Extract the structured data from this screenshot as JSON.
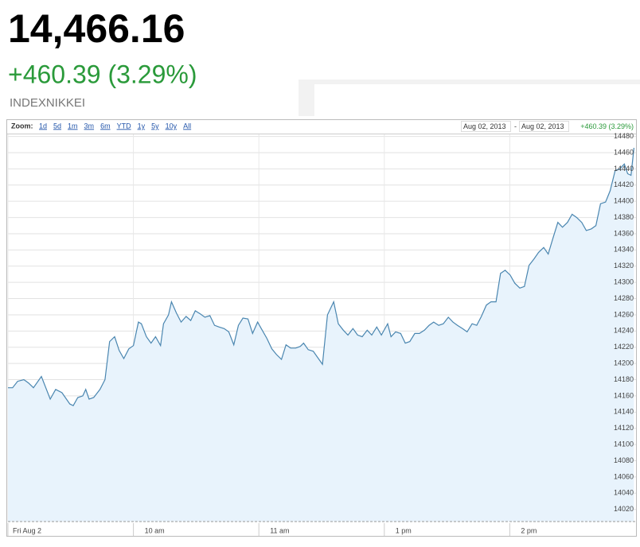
{
  "header": {
    "price": "14,466.16",
    "change": "+460.39 (3.29%)",
    "symbol": "INDEXNIKKEI"
  },
  "toolbar": {
    "zoom_label": "Zoom:",
    "zoom_options": [
      "1d",
      "5d",
      "1m",
      "3m",
      "6m",
      "YTD",
      "1y",
      "5y",
      "10y",
      "All"
    ],
    "range_start": "Aug 02, 2013",
    "range_separator": "-",
    "range_end": "Aug 02, 2013"
  },
  "chart_data": {
    "type": "line",
    "color": "#4a86b0",
    "fill": "#e8f3fc",
    "grid": true,
    "x": [
      0,
      1.1,
      2.3,
      3.8,
      4.9,
      6.1,
      8,
      10.1,
      11.4,
      12.9,
      14.8,
      15.6,
      16.7,
      17.9,
      18.6,
      19.4,
      20.5,
      22,
      23.2,
      24.3,
      25.5,
      26.6,
      27.7,
      28.9,
      30,
      31.2,
      31.9,
      33.1,
      34.2,
      35.3,
      36.5,
      37.2,
      38.4,
      39.1,
      40.3,
      41.4,
      42.6,
      43.7,
      44.8,
      46,
      47.1,
      48.3,
      49.4,
      50.5,
      51.7,
      52.8,
      54,
      55.1,
      56.2,
      57.4,
      58.5,
      59.7,
      60.8,
      61.9,
      63.1,
      64.2,
      65.4,
      66.5,
      67.6,
      68.8,
      69.9,
      70.7,
      71.8,
      73,
      74.1,
      75.2,
      76.4,
      77.9,
      79,
      80.2,
      81.3,
      82.5,
      83.6,
      84.7,
      85.9,
      87,
      88.2,
      89.3,
      90.8,
      91.6,
      92.7,
      93.9,
      95,
      96.1,
      97.3,
      98.4,
      99.6,
      100.7,
      101.8,
      103,
      104.1,
      105.3,
      106.4,
      107.5,
      108.7,
      109.8,
      111,
      112.1,
      113.2,
      114.4,
      115.5,
      116.7,
      117.8,
      118.9,
      120.1,
      121.2,
      122.4,
      123.5,
      124.6,
      125.8,
      126.9,
      128.1,
      129.2,
      130.3,
      131.5,
      132.6,
      133.8,
      134.9,
      136,
      137.2,
      138.3,
      139.5,
      140.6,
      141.7,
      142.9,
      144,
      145.2,
      146.3,
      147.4,
      148.2,
      149,
      149.7
    ],
    "values": [
      14170,
      14170,
      14178,
      14180,
      14176,
      14170,
      14184,
      14156,
      14168,
      14164,
      14150,
      14148,
      14158,
      14160,
      14168,
      14156,
      14158,
      14168,
      14180,
      14227,
      14233,
      14216,
      14206,
      14218,
      14222,
      14251,
      14249,
      14233,
      14225,
      14233,
      14222,
      14249,
      14260,
      14276,
      14262,
      14251,
      14258,
      14253,
      14265,
      14261,
      14257,
      14259,
      14247,
      14245,
      14243,
      14239,
      14223,
      14247,
      14256,
      14255,
      14237,
      14251,
      14241,
      14231,
      14218,
      14211,
      14205,
      14223,
      14219,
      14219,
      14221,
      14225,
      14217,
      14215,
      14207,
      14199,
      14260,
      14276,
      14249,
      14241,
      14235,
      14243,
      14235,
      14233,
      14241,
      14235,
      14245,
      14235,
      14249,
      14233,
      14239,
      14237,
      14225,
      14227,
      14237,
      14237,
      14241,
      14247,
      14251,
      14247,
      14249,
      14257,
      14251,
      14247,
      14243,
      14239,
      14249,
      14247,
      14258,
      14272,
      14276,
      14276,
      14311,
      14315,
      14309,
      14299,
      14293,
      14295,
      14321,
      14329,
      14337,
      14343,
      14335,
      14354,
      14374,
      14368,
      14374,
      14384,
      14380,
      14374,
      14364,
      14366,
      14370,
      14397,
      14399,
      14413,
      14438,
      14440,
      14446,
      14434,
      14432,
      14466
    ],
    "xlim": [
      0,
      150
    ],
    "xticks": [
      {
        "value": 0,
        "label": "Fri Aug 2"
      },
      {
        "value": 30,
        "label": "10 am"
      },
      {
        "value": 60,
        "label": "11 am"
      },
      {
        "value": 90,
        "label": "1 pm"
      },
      {
        "value": 120,
        "label": "2 pm"
      }
    ],
    "ylim": [
      14005,
      14480
    ],
    "yticks": [
      14020,
      14040,
      14060,
      14080,
      14100,
      14120,
      14140,
      14160,
      14180,
      14200,
      14220,
      14240,
      14260,
      14280,
      14300,
      14320,
      14340,
      14360,
      14380,
      14400,
      14420,
      14440,
      14460,
      14480
    ]
  }
}
